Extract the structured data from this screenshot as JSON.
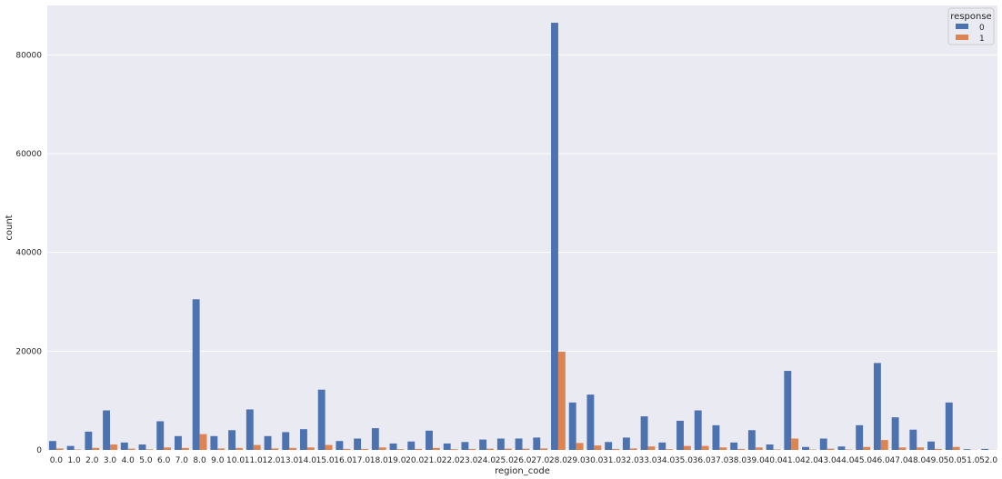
{
  "chart_data": {
    "type": "bar",
    "xlabel": "region_code",
    "ylabel": "count",
    "ylim": [
      0,
      90000
    ],
    "yticks": [
      0,
      20000,
      40000,
      60000,
      80000
    ],
    "grid": true,
    "legend": {
      "title": "response",
      "placement": "top-right"
    },
    "categories": [
      "0.0",
      "1.0",
      "2.0",
      "3.0",
      "4.0",
      "5.0",
      "6.0",
      "7.0",
      "8.0",
      "9.0",
      "10.0",
      "11.0",
      "12.0",
      "13.0",
      "14.0",
      "15.0",
      "16.0",
      "17.0",
      "18.0",
      "19.0",
      "20.0",
      "21.0",
      "22.0",
      "23.0",
      "24.0",
      "25.0",
      "26.0",
      "27.0",
      "28.0",
      "29.0",
      "30.0",
      "31.0",
      "32.0",
      "33.0",
      "34.0",
      "35.0",
      "36.0",
      "37.0",
      "38.0",
      "39.0",
      "40.0",
      "41.0",
      "42.0",
      "43.0",
      "44.0",
      "45.0",
      "46.0",
      "47.0",
      "48.0",
      "49.0",
      "50.0",
      "51.0",
      "52.0"
    ],
    "series": [
      {
        "name": "0",
        "color": "#4c72b0",
        "values": [
          1800,
          800,
          3700,
          8000,
          1500,
          1100,
          5800,
          2800,
          30500,
          2800,
          4000,
          8200,
          2800,
          3600,
          4200,
          12200,
          1800,
          2300,
          4400,
          1300,
          1700,
          3900,
          1300,
          1600,
          2100,
          2300,
          2300,
          2500,
          86500,
          9600,
          11200,
          1600,
          2500,
          6800,
          1500,
          5900,
          8000,
          5000,
          1500,
          4000,
          1100,
          16000,
          600,
          2300,
          700,
          5000,
          17600,
          6600,
          4100,
          1700,
          9600,
          150,
          200
        ]
      },
      {
        "name": "1",
        "color": "#dd8452",
        "values": [
          300,
          80,
          400,
          1100,
          250,
          120,
          500,
          400,
          3200,
          300,
          400,
          1000,
          300,
          400,
          500,
          1000,
          200,
          200,
          500,
          150,
          200,
          400,
          150,
          200,
          250,
          250,
          250,
          300,
          19900,
          1400,
          900,
          200,
          300,
          700,
          150,
          800,
          800,
          500,
          200,
          500,
          100,
          2300,
          80,
          250,
          80,
          600,
          2000,
          500,
          500,
          200,
          600,
          30,
          30
        ]
      }
    ]
  }
}
